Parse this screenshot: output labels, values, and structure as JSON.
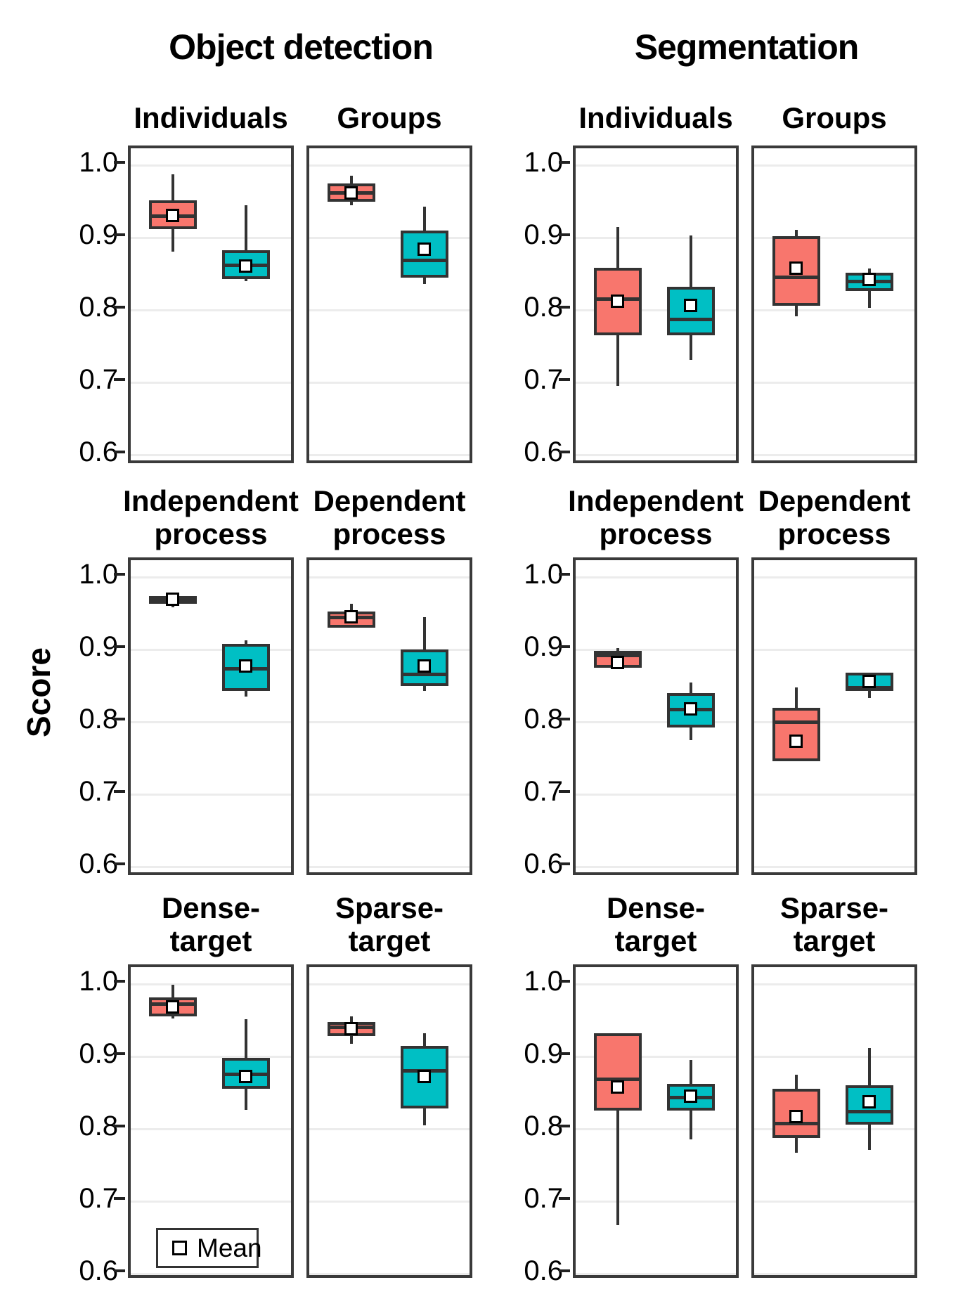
{
  "chart_data": {
    "type": "boxplot",
    "ylabel": "Score",
    "yticks": [
      1.0,
      0.9,
      0.8,
      0.7,
      0.6
    ],
    "ytick_labels": [
      "1.0",
      "0.9",
      "0.8",
      "0.7",
      "0.6"
    ],
    "ylim_edges": [
      0.585,
      1.024
    ],
    "gridlines": "major-horizontal",
    "legend": {
      "label": "Mean",
      "marker": "white-square",
      "position": "bottom-left of Dense-target (Object detection) panel"
    },
    "colors": {
      "box1": "#F8766D",
      "box2": "#00BFC4",
      "border": "#333333",
      "gridline": "#ECECEC",
      "mean_fill": "#FFFFFF"
    },
    "groups": [
      {
        "title": "Object detection",
        "panels": [
          {
            "title": "Individuals",
            "title_lines": [
              "Individuals"
            ],
            "boxes": [
              {
                "color": "#F8766D",
                "whislo": 0.881,
                "q1": 0.912,
                "med": 0.93,
                "q3": 0.951,
                "whishi": 0.987,
                "mean": 0.931
              },
              {
                "color": "#00BFC4",
                "whislo": 0.84,
                "q1": 0.843,
                "med": 0.862,
                "q3": 0.883,
                "whishi": 0.945,
                "mean": 0.861
              }
            ]
          },
          {
            "title": "Groups",
            "title_lines": [
              "Groups"
            ],
            "boxes": [
              {
                "color": "#F8766D",
                "whislo": 0.945,
                "q1": 0.95,
                "med": 0.962,
                "q3": 0.975,
                "whishi": 0.985,
                "mean": 0.962
              },
              {
                "color": "#00BFC4",
                "whislo": 0.836,
                "q1": 0.845,
                "med": 0.868,
                "q3": 0.91,
                "whishi": 0.943,
                "mean": 0.884
              }
            ]
          },
          {
            "title": "Independent process",
            "title_lines": [
              "Independent",
              "process"
            ],
            "boxes": [
              {
                "color": "#F8766D",
                "whislo": 0.958,
                "q1": 0.963,
                "med": 0.969,
                "q3": 0.974,
                "whishi": 0.978,
                "mean": 0.969
              },
              {
                "color": "#00BFC4",
                "whislo": 0.835,
                "q1": 0.843,
                "med": 0.873,
                "q3": 0.908,
                "whishi": 0.913,
                "mean": 0.877
              }
            ]
          },
          {
            "title": "Dependent process",
            "title_lines": [
              "Dependent",
              "process"
            ],
            "boxes": [
              {
                "color": "#F8766D",
                "whislo": 0.93,
                "q1": 0.93,
                "med": 0.944,
                "q3": 0.952,
                "whishi": 0.963,
                "mean": 0.945
              },
              {
                "color": "#00BFC4",
                "whislo": 0.843,
                "q1": 0.85,
                "med": 0.866,
                "q3": 0.9,
                "whishi": 0.945,
                "mean": 0.877
              }
            ]
          },
          {
            "title": "Dense-target",
            "title_lines": [
              "Dense-",
              "target"
            ],
            "boxes": [
              {
                "color": "#F8766D",
                "whislo": 0.952,
                "q1": 0.955,
                "med": 0.972,
                "q3": 0.982,
                "whishi": 0.999,
                "mean": 0.968
              },
              {
                "color": "#00BFC4",
                "whislo": 0.826,
                "q1": 0.855,
                "med": 0.875,
                "q3": 0.898,
                "whishi": 0.951,
                "mean": 0.872
              }
            ]
          },
          {
            "title": "Sparse-target",
            "title_lines": [
              "Sparse-",
              "target"
            ],
            "boxes": [
              {
                "color": "#F8766D",
                "whislo": 0.917,
                "q1": 0.928,
                "med": 0.94,
                "q3": 0.948,
                "whishi": 0.955,
                "mean": 0.938
              },
              {
                "color": "#00BFC4",
                "whislo": 0.805,
                "q1": 0.828,
                "med": 0.88,
                "q3": 0.915,
                "whishi": 0.932,
                "mean": 0.872
              }
            ]
          }
        ]
      },
      {
        "title": "Segmentation",
        "panels": [
          {
            "title": "Individuals",
            "title_lines": [
              "Individuals"
            ],
            "boxes": [
              {
                "color": "#F8766D",
                "whislo": 0.695,
                "q1": 0.765,
                "med": 0.815,
                "q3": 0.858,
                "whishi": 0.915,
                "mean": 0.812
              },
              {
                "color": "#00BFC4",
                "whislo": 0.731,
                "q1": 0.765,
                "med": 0.787,
                "q3": 0.832,
                "whishi": 0.903,
                "mean": 0.806
              }
            ]
          },
          {
            "title": "Groups",
            "title_lines": [
              "Groups"
            ],
            "boxes": [
              {
                "color": "#F8766D",
                "whislo": 0.791,
                "q1": 0.806,
                "med": 0.845,
                "q3": 0.902,
                "whishi": 0.911,
                "mean": 0.858
              },
              {
                "color": "#00BFC4",
                "whislo": 0.803,
                "q1": 0.826,
                "med": 0.839,
                "q3": 0.851,
                "whishi": 0.857,
                "mean": 0.842
              }
            ]
          },
          {
            "title": "Independent process",
            "title_lines": [
              "Independent",
              "process"
            ],
            "boxes": [
              {
                "color": "#F8766D",
                "whislo": 0.875,
                "q1": 0.875,
                "med": 0.892,
                "q3": 0.898,
                "whishi": 0.902,
                "mean": 0.882
              },
              {
                "color": "#00BFC4",
                "whislo": 0.775,
                "q1": 0.792,
                "med": 0.817,
                "q3": 0.84,
                "whishi": 0.854,
                "mean": 0.818
              }
            ]
          },
          {
            "title": "Dependent process",
            "title_lines": [
              "Dependent",
              "process"
            ],
            "boxes": [
              {
                "color": "#F8766D",
                "whislo": 0.746,
                "q1": 0.746,
                "med": 0.8,
                "q3": 0.819,
                "whishi": 0.848,
                "mean": 0.773
              },
              {
                "color": "#00BFC4",
                "whislo": 0.833,
                "q1": 0.843,
                "med": 0.847,
                "q3": 0.868,
                "whishi": 0.868,
                "mean": 0.856
              }
            ]
          },
          {
            "title": "Dense-target",
            "title_lines": [
              "Dense-",
              "target"
            ],
            "boxes": [
              {
                "color": "#F8766D",
                "whislo": 0.667,
                "q1": 0.825,
                "med": 0.868,
                "q3": 0.932,
                "whishi": 0.932,
                "mean": 0.858
              },
              {
                "color": "#00BFC4",
                "whislo": 0.785,
                "q1": 0.825,
                "med": 0.843,
                "q3": 0.862,
                "whishi": 0.895,
                "mean": 0.845
              }
            ]
          },
          {
            "title": "Sparse-target",
            "title_lines": [
              "Sparse-",
              "target"
            ],
            "boxes": [
              {
                "color": "#F8766D",
                "whislo": 0.767,
                "q1": 0.787,
                "med": 0.807,
                "q3": 0.855,
                "whishi": 0.875,
                "mean": 0.817
              },
              {
                "color": "#00BFC4",
                "whislo": 0.771,
                "q1": 0.806,
                "med": 0.824,
                "q3": 0.86,
                "whishi": 0.912,
                "mean": 0.837
              }
            ]
          }
        ]
      }
    ]
  }
}
